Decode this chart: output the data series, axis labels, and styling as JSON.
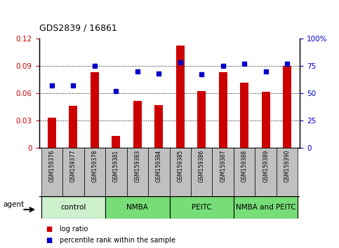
{
  "title": "GDS2839 / 16861",
  "samples": [
    "GSM159376",
    "GSM159377",
    "GSM159378",
    "GSM159381",
    "GSM159383",
    "GSM159384",
    "GSM159385",
    "GSM159386",
    "GSM159387",
    "GSM159388",
    "GSM159389",
    "GSM159390"
  ],
  "log_ratio": [
    0.033,
    0.046,
    0.083,
    0.013,
    0.051,
    0.047,
    0.112,
    0.062,
    0.083,
    0.071,
    0.061,
    0.09
  ],
  "percentile_rank": [
    57,
    57,
    75,
    52,
    70,
    68,
    78,
    67,
    75,
    77,
    70,
    77
  ],
  "groups": [
    {
      "label": "control",
      "start": 0,
      "end": 3,
      "color": "#ccf0cc"
    },
    {
      "label": "NMBA",
      "start": 3,
      "end": 6,
      "color": "#77dd77"
    },
    {
      "label": "PEITC",
      "start": 6,
      "end": 9,
      "color": "#77dd77"
    },
    {
      "label": "NMBA and PEITC",
      "start": 9,
      "end": 12,
      "color": "#77dd77"
    }
  ],
  "bar_color": "#cc0000",
  "dot_color": "#0000cc",
  "left_ylim": [
    0,
    0.12
  ],
  "right_ylim": [
    0,
    100
  ],
  "left_yticks": [
    0,
    0.03,
    0.06,
    0.09,
    0.12
  ],
  "right_yticks": [
    0,
    25,
    50,
    75,
    100
  ],
  "right_yticklabels": [
    "0",
    "25",
    "50",
    "75",
    "100%"
  ],
  "legend_items": [
    {
      "label": "log ratio",
      "color": "#cc0000"
    },
    {
      "label": "percentile rank within the sample",
      "color": "#0000cc"
    }
  ],
  "tick_label_area_color": "#c0c0c0",
  "gridlines": [
    0.03,
    0.06,
    0.09
  ],
  "bar_width": 0.4
}
